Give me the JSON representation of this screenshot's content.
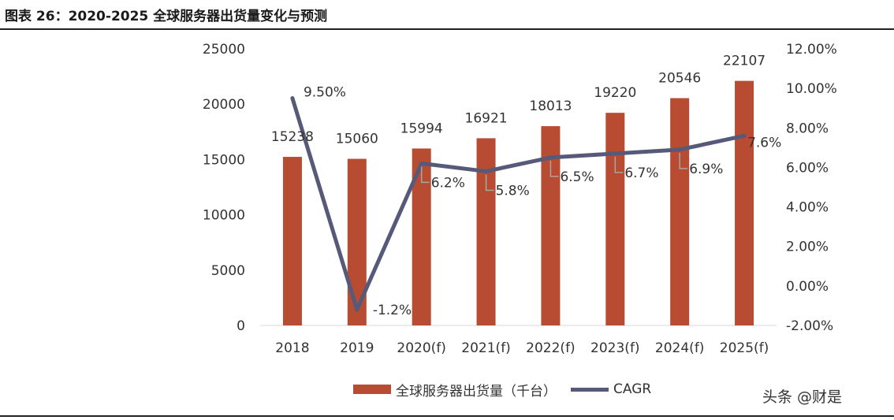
{
  "header": {
    "title": "图表 26：2020-2025 全球服务器出货量变化与预测"
  },
  "watermark": "头条 @财是",
  "colors": {
    "bar": "#b84c32",
    "line": "#565a78",
    "axis": "#d9d9d9",
    "leader": "#a6a6a6"
  },
  "chart_data": {
    "type": "bar",
    "categories": [
      "2018",
      "2019",
      "2020(f)",
      "2021(f)",
      "2022(f)",
      "2023(f)",
      "2024(f)",
      "2025(f)"
    ],
    "series": [
      {
        "name": "全球服务器出货量（千台）",
        "type": "bar",
        "axis": "left",
        "values": [
          15238,
          15060,
          15994,
          16921,
          18013,
          19220,
          20546,
          22107
        ],
        "labels": [
          "15238",
          "15060",
          "15994",
          "16921",
          "18013",
          "19220",
          "20546",
          "22107"
        ]
      },
      {
        "name": "CAGR",
        "type": "line",
        "axis": "right",
        "values": [
          9.5,
          -1.2,
          6.2,
          5.8,
          6.5,
          6.7,
          6.9,
          7.6
        ],
        "labels": [
          "9.50%",
          "-1.2%",
          "6.2%",
          "5.8%",
          "6.5%",
          "6.7%",
          "6.9%",
          "7.6%"
        ]
      }
    ],
    "left_axis": {
      "ylim": [
        0,
        25000
      ],
      "ticks": [
        "0",
        "5000",
        "10000",
        "15000",
        "20000",
        "25000"
      ]
    },
    "right_axis": {
      "ylim": [
        -2,
        12
      ],
      "ticks": [
        "-2.00%",
        "0.00%",
        "2.00%",
        "4.00%",
        "6.00%",
        "8.00%",
        "10.00%",
        "12.00%"
      ]
    },
    "legend": "bottom",
    "grid": false
  }
}
